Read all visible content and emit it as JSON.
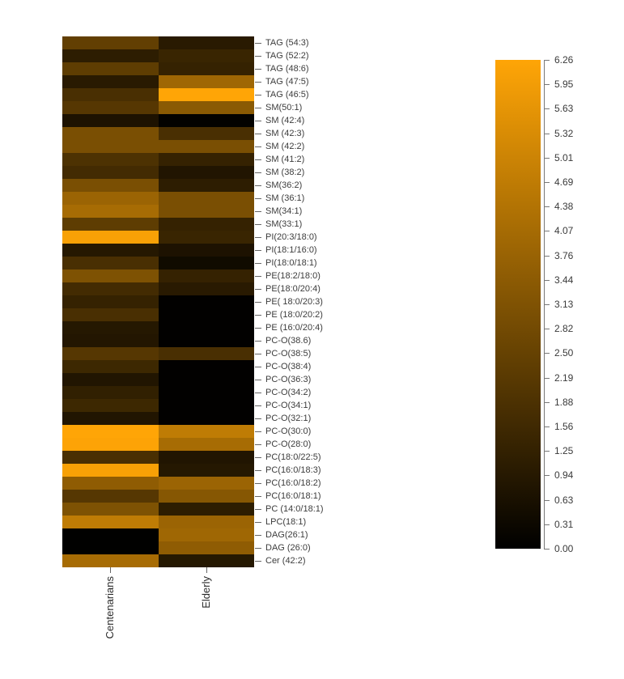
{
  "chart_data": {
    "type": "heatmap",
    "title": "",
    "categories": [
      "Centenarians",
      "Elderly"
    ],
    "rows": [
      "TAG (54:3)",
      "TAG (52:2)",
      "TAG (48:6)",
      "TAG (47:5)",
      "TAG (46:5)",
      "SM(50:1)",
      "SM (42:4)",
      "SM (42:3)",
      "SM (42:2)",
      "SM (41:2)",
      "SM (38:2)",
      "SM(36:2)",
      "SM (36:1)",
      "SM(34:1)",
      "SM(33:1)",
      "PI(20:3/18:0)",
      "PI(18:1/16:0)",
      "PI(18:0/18:1)",
      "PE(18:2/18:0)",
      "PE(18:0/20:4)",
      "PE( 18:0/20:3)",
      "PE (18:0/20:2)",
      "PE (16:0/20:4)",
      "PC-O(38.6)",
      "PC-O(38:5)",
      "PC-O(38:4)",
      "PC-O(36:3)",
      "PC-O(34:2)",
      "PC-O(34:1)",
      "PC-O(32:1)",
      "PC-O(30:0)",
      "PC-O(28:0)",
      "PC(18:0/22:5)",
      "PC(16:0/18:3)",
      "PC(16:0/18:2)",
      "PC(16:0/18:1)",
      "PC (14:0/18:1)",
      "LPC(18:1)",
      "DAG(26:1)",
      "DAG (26:0)",
      "Cer (42:2)"
    ],
    "series": [
      {
        "name": "Centenarians",
        "values": [
          2.4,
          1.1,
          2.3,
          1.0,
          1.8,
          2.1,
          0.7,
          3.0,
          3.0,
          1.9,
          1.65,
          3.0,
          3.8,
          4.1,
          2.3,
          6.1,
          0.9,
          1.8,
          3.1,
          1.65,
          1.3,
          1.8,
          0.9,
          0.85,
          2.1,
          1.5,
          0.8,
          1.2,
          1.5,
          0.8,
          6.26,
          6.2,
          1.8,
          6.1,
          3.5,
          2.1,
          3.1,
          4.7,
          0.02,
          0.02,
          4.1
        ]
      },
      {
        "name": "Elderly",
        "values": [
          1.0,
          1.4,
          1.3,
          3.9,
          6.26,
          3.4,
          0.08,
          1.8,
          3.0,
          1.3,
          0.8,
          1.1,
          3.0,
          3.0,
          1.3,
          1.4,
          0.7,
          0.4,
          1.3,
          1.0,
          0.05,
          0.05,
          0.05,
          0.05,
          1.8,
          0.05,
          0.05,
          0.05,
          0.05,
          0.05,
          4.7,
          4.1,
          0.8,
          0.9,
          3.8,
          3.3,
          1.1,
          3.8,
          3.9,
          3.5,
          0.9
        ]
      }
    ],
    "colorbar": {
      "min": 0.0,
      "max": 6.26,
      "tick_labels": [
        "6.26",
        "5.95",
        "5.63",
        "5.32",
        "5.01",
        "4.69",
        "4.38",
        "4.07",
        "3.76",
        "3.44",
        "3.13",
        "2.82",
        "2.50",
        "2.19",
        "1.88",
        "1.56",
        "1.25",
        "0.94",
        "0.63",
        "0.31",
        "0.00"
      ],
      "color_max": "#ffa506",
      "color_min": "#000000",
      "position": "right"
    },
    "xlabel": "",
    "ylabel": "",
    "grid": false,
    "legend_position": "right"
  }
}
